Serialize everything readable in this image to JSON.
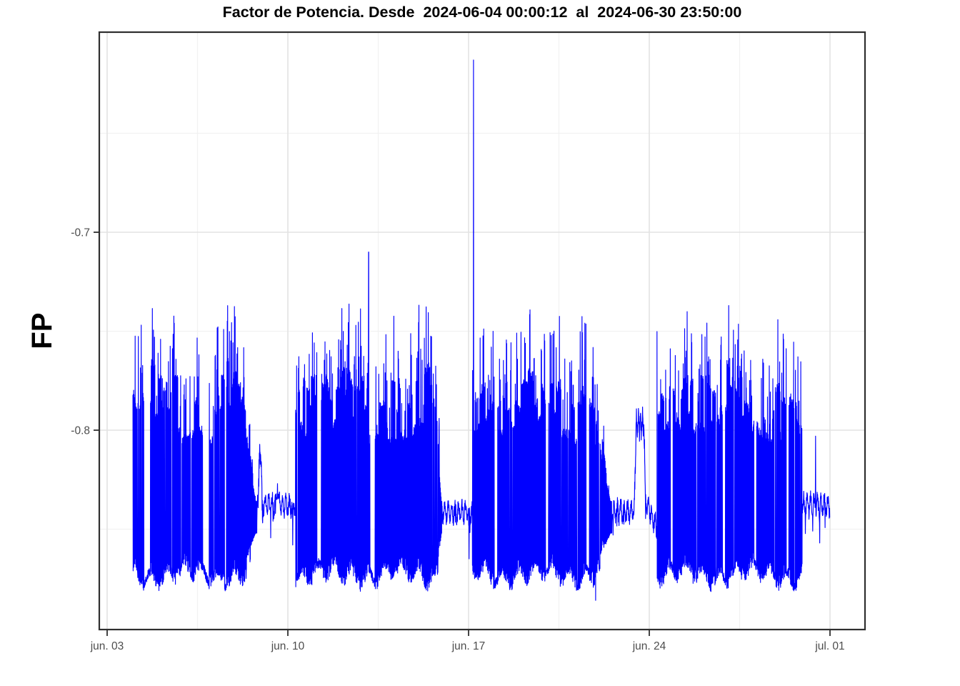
{
  "chart_data": {
    "type": "line",
    "title": "Factor de Potencia. Desde  2024-06-04 00:00:12  al  2024-06-30 23:50:00",
    "ylabel": "FP",
    "series_name": "FP",
    "legend": "none",
    "grid": "on",
    "sampling_minutes": 10,
    "x_axis": {
      "unit": "date (June 2024, day-of-month; 31 = jul. 01)",
      "ticks": [
        {
          "label": "jun. 03",
          "day": 3
        },
        {
          "label": "jun. 10",
          "day": 10
        },
        {
          "label": "jun. 17",
          "day": 17
        },
        {
          "label": "jun. 24",
          "day": 24
        },
        {
          "label": "jul. 01",
          "day": 31
        }
      ],
      "minor_days": [
        6.5,
        13.5,
        20.5,
        27.5
      ],
      "domain_days": [
        2.65,
        32.36
      ],
      "data_span_days": [
        4.0,
        30.993
      ]
    },
    "y_axis": {
      "ticks": [
        {
          "label": "-0.7",
          "value": -0.7
        },
        {
          "label": "-0.8",
          "value": -0.8
        }
      ],
      "minor_values": [
        -0.65,
        -0.75,
        -0.85
      ],
      "domain": [
        -0.9007,
        -0.599
      ]
    },
    "style": {
      "line_color": "#0000ff",
      "grid_major": "#e3e3e3",
      "grid_minor": "#f1f1f1",
      "panel_border": "#2f2f2f",
      "tick_color": "#2f2f2f",
      "tick_label_color": "#4d4d4d",
      "title_color": "#000000",
      "background": "#ffffff"
    },
    "envelope": {
      "bottom": -0.8755,
      "bottom_noise": 0.008,
      "col_top_base": -0.806,
      "col_top_var": 0.032,
      "col_hold": [
        6,
        24
      ],
      "spike_prob": 0.2,
      "spike_min": 0.012,
      "spike_var": 0.03,
      "micro_rest_prob": 0.012,
      "cap": -0.736,
      "fade_high": -0.836,
      "fade_low": -0.852
    },
    "segments": [
      {
        "type": "dense",
        "d0": 4.0,
        "d1": 8.27,
        "rests": [
          [
            4.43,
            4.68
          ],
          [
            6.7,
            6.95
          ],
          [
            7.55,
            7.62
          ]
        ]
      },
      {
        "type": "fade",
        "d0": 8.27,
        "d1": 8.8
      },
      {
        "type": "bump",
        "d0": 8.8,
        "d1": 9.05,
        "base": -0.845,
        "peak": -0.806,
        "shape": "tri"
      },
      {
        "type": "quiet",
        "d0": 9.05,
        "d1": 10.3,
        "level": -0.838
      },
      {
        "type": "dense",
        "d0": 10.3,
        "d1": 15.72,
        "rests": [
          [
            11.12,
            11.3
          ],
          [
            13.18,
            13.38
          ]
        ]
      },
      {
        "type": "fade",
        "d0": 15.72,
        "d1": 15.97
      },
      {
        "type": "quiet",
        "d0": 15.97,
        "d1": 17.15,
        "level": -0.841
      },
      {
        "type": "dense",
        "d0": 17.15,
        "d1": 21.88,
        "rests": [
          [
            18.0,
            18.12
          ],
          [
            19.98,
            20.1
          ],
          [
            21.55,
            21.68
          ]
        ]
      },
      {
        "type": "fade",
        "d0": 21.88,
        "d1": 22.55
      },
      {
        "type": "quiet",
        "d0": 22.55,
        "d1": 23.42,
        "level": -0.841
      },
      {
        "type": "bump",
        "d0": 23.42,
        "d1": 23.86,
        "base": -0.84,
        "peak": -0.797,
        "shape": "plateau"
      },
      {
        "type": "quiet",
        "d0": 23.86,
        "d1": 24.3,
        "level": -0.836,
        "level_end": -0.849
      },
      {
        "type": "dense",
        "d0": 24.3,
        "d1": 29.92,
        "rests": [
          [
            24.82,
            24.92
          ],
          [
            26.84,
            26.95
          ],
          [
            28.05,
            28.15
          ],
          [
            29.3,
            29.4
          ]
        ]
      },
      {
        "type": "quiet",
        "d0": 29.92,
        "d1": 30.993,
        "level": -0.838
      }
    ],
    "events": [
      {
        "d": 9.6,
        "v": -0.827,
        "w": 0.14
      },
      {
        "d": 10.19,
        "v": -0.858,
        "w": 0.035
      },
      {
        "d": 13.13,
        "v": -0.71,
        "w": 0.012
      },
      {
        "d": 15.86,
        "v": -0.794,
        "w": 0.018
      },
      {
        "d": 17.02,
        "v": -0.865,
        "w": 0.025
      },
      {
        "d": 17.19,
        "v": -0.613,
        "w": 0.012
      },
      {
        "d": 21.92,
        "v": -0.886,
        "w": 0.018
      },
      {
        "d": 22.2,
        "v": -0.806,
        "w": 0.02
      },
      {
        "d": 22.6,
        "v": -0.853,
        "w": 0.03
      },
      {
        "d": 30.33,
        "v": -0.851,
        "w": 0.025
      },
      {
        "d": 30.44,
        "v": -0.803,
        "w": 0.018
      },
      {
        "d": 30.6,
        "v": -0.857,
        "w": 0.022
      }
    ]
  }
}
